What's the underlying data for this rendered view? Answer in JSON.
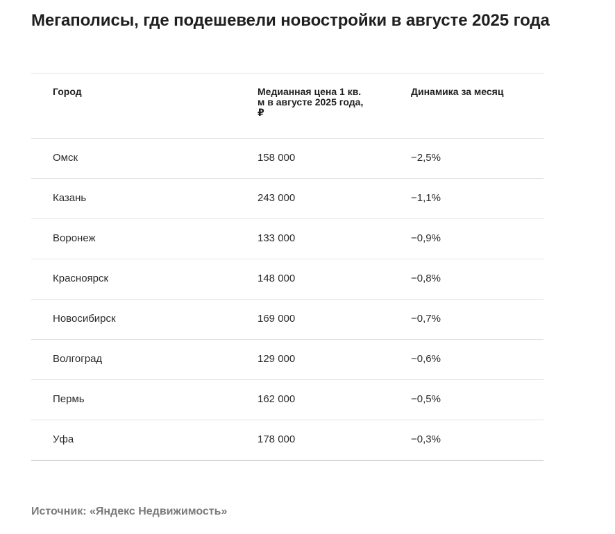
{
  "title": "Мегаполисы, где подешевели новостройки в августе 2025 года",
  "table": {
    "headers": [
      "Город",
      "Медианная цена 1 кв. м в августе 2025 года, ₽",
      "Динамика за месяц"
    ],
    "rows": [
      [
        "Омск",
        "158 000",
        "−2,5%"
      ],
      [
        "Казань",
        "243 000",
        "−1,1%"
      ],
      [
        "Воронеж",
        "133 000",
        "−0,9%"
      ],
      [
        "Красноярск",
        "148 000",
        "−0,8%"
      ],
      [
        "Новосибирск",
        "169 000",
        "−0,7%"
      ],
      [
        "Волгоград",
        "129 000",
        "−0,6%"
      ],
      [
        "Пермь",
        "162 000",
        "−0,5%"
      ],
      [
        "Уфа",
        "178 000",
        "−0,3%"
      ]
    ]
  },
  "source": "Источник: «Яндекс Недвижимость»"
}
